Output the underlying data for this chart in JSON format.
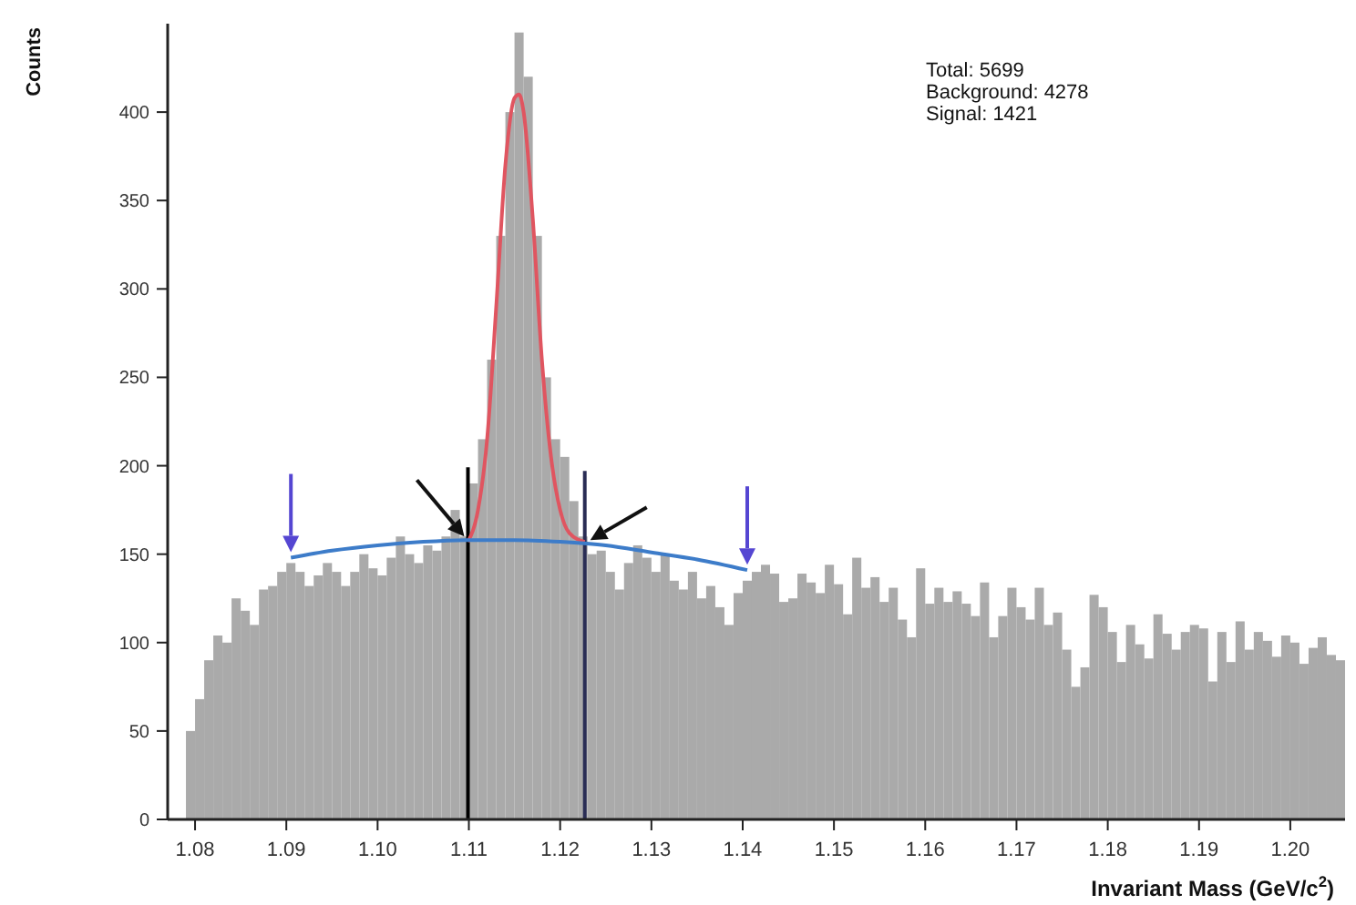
{
  "chart_data": {
    "type": "histogram",
    "xlabel": "Invariant Mass (GeV/c$^{2}$)",
    "ylabel": "Counts",
    "annotations": [
      "Total: 5699",
      "Background: 4278",
      "Signal: 1421"
    ],
    "xlim": [
      1.077,
      1.206
    ],
    "xticks": [
      {
        "value": 1.08,
        "label": "1.08"
      },
      {
        "value": 1.09,
        "label": "1.09"
      },
      {
        "value": 1.1,
        "label": "1.10"
      },
      {
        "value": 1.11,
        "label": "1.11"
      },
      {
        "value": 1.12,
        "label": "1.12"
      },
      {
        "value": 1.13,
        "label": "1.13"
      },
      {
        "value": 1.14,
        "label": "1.14"
      },
      {
        "value": 1.15,
        "label": "1.15"
      },
      {
        "value": 1.16,
        "label": "1.16"
      },
      {
        "value": 1.17,
        "label": "1.17"
      },
      {
        "value": 1.18,
        "label": "1.18"
      },
      {
        "value": 1.19,
        "label": "1.19"
      },
      {
        "value": 1.2,
        "label": "1.20"
      }
    ],
    "ylim": [
      0,
      450
    ],
    "yticks": [
      0,
      50,
      100,
      150,
      200,
      250,
      300,
      350,
      400
    ],
    "ref_lines": [
      {
        "axis": "x",
        "value": 1.1099,
        "color": "#000000"
      },
      {
        "axis": "x",
        "value": 1.1227,
        "color": "#2a2d55"
      }
    ],
    "series": [
      {
        "color": "#aaaaaa",
        "bins": [
          1.079,
          1.08,
          1.081,
          1.082,
          1.083,
          1.084,
          1.085,
          1.086,
          1.087,
          1.088,
          1.089,
          1.09,
          1.091,
          1.092,
          1.093,
          1.094,
          1.095,
          1.096,
          1.097,
          1.098,
          1.099,
          1.1,
          1.101,
          1.102,
          1.103,
          1.104,
          1.105,
          1.106,
          1.107,
          1.108,
          1.109,
          1.11,
          1.111,
          1.112,
          1.113,
          1.114,
          1.115,
          1.116,
          1.117,
          1.118,
          1.119,
          1.12,
          1.121,
          1.122,
          1.123,
          1.124,
          1.125,
          1.126,
          1.127,
          1.128,
          1.129,
          1.13,
          1.131,
          1.132,
          1.133,
          1.134,
          1.135,
          1.136,
          1.137,
          1.138,
          1.139,
          1.14,
          1.141,
          1.142,
          1.143,
          1.144,
          1.145,
          1.146,
          1.147,
          1.148,
          1.149,
          1.15,
          1.151,
          1.152,
          1.153,
          1.154,
          1.155,
          1.156,
          1.157,
          1.158,
          1.159,
          1.16,
          1.161,
          1.162,
          1.163,
          1.164,
          1.165,
          1.166,
          1.167,
          1.168,
          1.169,
          1.17,
          1.171,
          1.172,
          1.173,
          1.174,
          1.175,
          1.176,
          1.177,
          1.178,
          1.179,
          1.18,
          1.181,
          1.182,
          1.183,
          1.184,
          1.185,
          1.186,
          1.187,
          1.188,
          1.189,
          1.19,
          1.191,
          1.192,
          1.193,
          1.194,
          1.195,
          1.196,
          1.197,
          1.198,
          1.199,
          1.2,
          1.201,
          1.202,
          1.203,
          1.204,
          1.205,
          1.206
        ],
        "values": [
          50,
          68,
          90,
          104,
          100,
          125,
          118,
          110,
          130,
          132,
          140,
          145,
          140,
          132,
          138,
          145,
          140,
          132,
          140,
          150,
          142,
          138,
          148,
          160,
          150,
          145,
          155,
          152,
          160,
          175,
          160,
          190,
          215,
          260,
          330,
          400,
          445,
          420,
          330,
          250,
          215,
          205,
          180,
          160,
          150,
          152,
          140,
          130,
          145,
          155,
          148,
          140,
          150,
          135,
          130,
          140,
          125,
          132,
          120,
          110,
          128,
          135,
          140,
          144,
          139,
          123,
          125,
          139,
          134,
          128,
          144,
          133,
          116,
          148,
          131,
          137,
          123,
          131,
          113,
          103,
          142,
          122,
          131,
          123,
          129,
          122,
          115,
          134,
          103,
          115,
          131,
          120,
          113,
          131,
          110,
          117,
          96,
          75,
          86,
          127,
          120,
          106,
          89,
          110,
          99,
          91,
          116,
          105,
          96,
          106,
          110,
          108,
          78,
          106,
          89,
          112,
          96,
          106,
          101,
          92,
          104,
          100,
          88,
          97,
          103,
          93,
          90
        ]
      },
      {
        "type": "line",
        "color": "#e05560",
        "x": [
          1.1099,
          1.111,
          1.112,
          1.113,
          1.114,
          1.115,
          1.1155,
          1.116,
          1.117,
          1.118,
          1.119,
          1.12,
          1.121,
          1.1227
        ],
        "values": [
          157,
          175,
          215,
          290,
          370,
          408,
          410,
          400,
          340,
          260,
          205,
          175,
          162,
          157
        ]
      },
      {
        "type": "line",
        "color": "#3d7cc9",
        "x": [
          1.0905,
          1.095,
          1.1,
          1.105,
          1.11,
          1.115,
          1.12,
          1.125,
          1.13,
          1.135,
          1.1405
        ],
        "values": [
          148,
          152,
          155,
          157,
          158,
          158,
          157,
          155,
          151,
          147,
          141
        ]
      }
    ]
  }
}
